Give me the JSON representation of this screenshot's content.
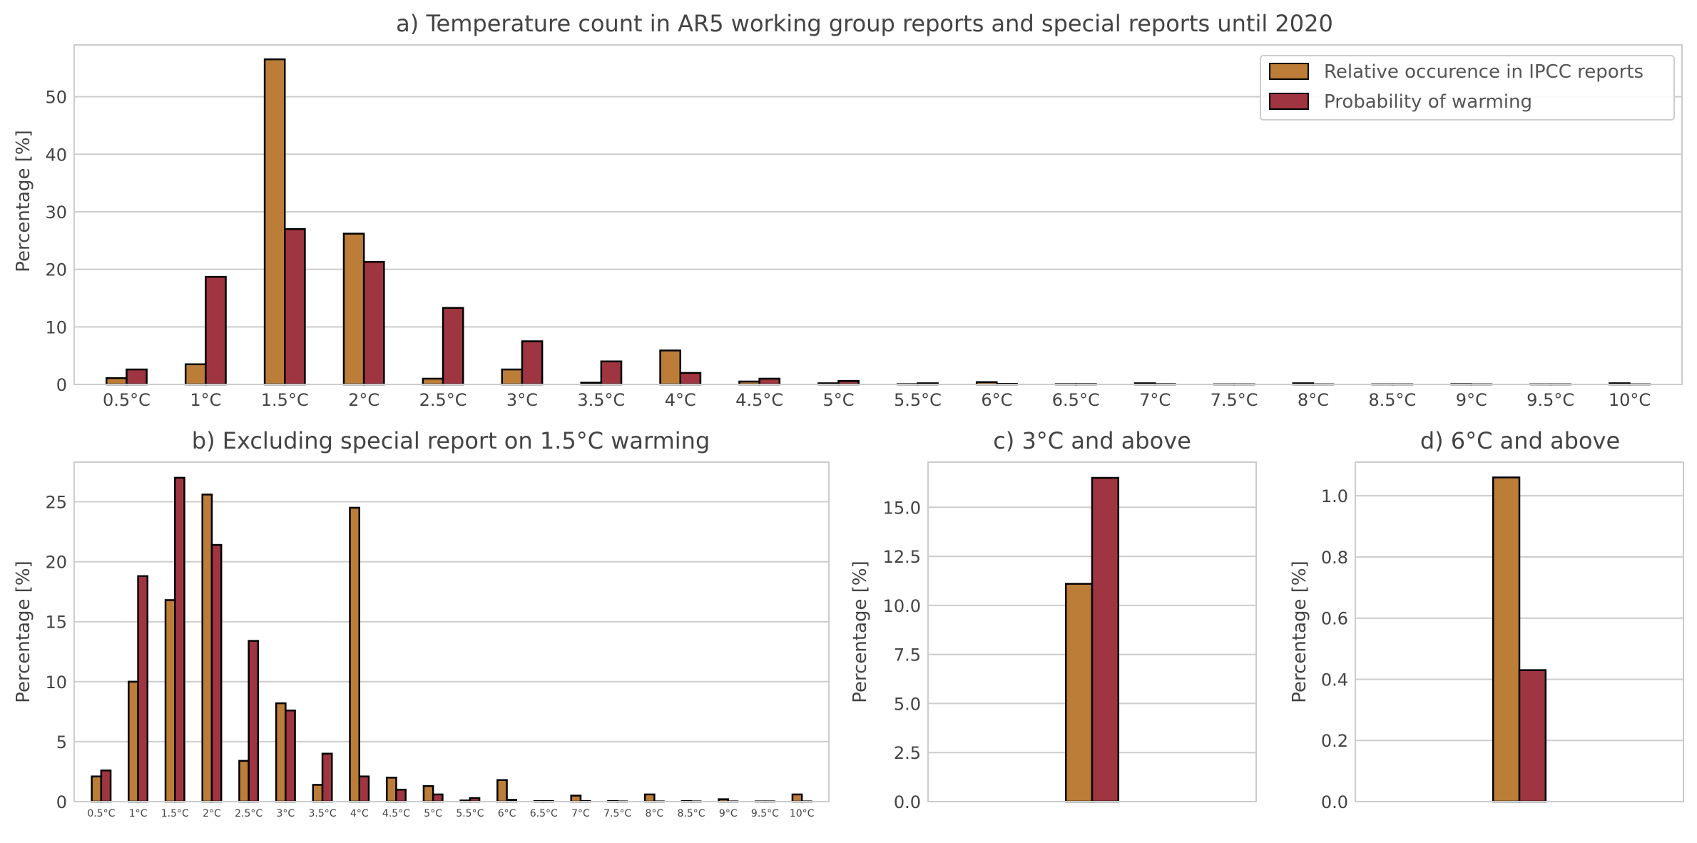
{
  "colors": {
    "ipcc": "#bb7d38",
    "warming": "#9e3540",
    "grid": "#cccccc",
    "frame": "#cccccc",
    "text": "#444444",
    "edge": "#000000"
  },
  "legend": {
    "series_1": "Relative occurence in IPCC reports",
    "series_2": "Probability of warming",
    "placement": "top-right"
  },
  "chart_data": [
    {
      "type": "bar",
      "title": "a) Temperature count in AR5 working group reports and special reports until 2020",
      "xlabel": "",
      "ylabel": "Percentage [%]",
      "ylim": [
        0,
        59
      ],
      "yticks": [
        0,
        10,
        20,
        30,
        40,
        50
      ],
      "ytick_labels": [
        "0",
        "10",
        "20",
        "30",
        "40",
        "50"
      ],
      "grid": true,
      "categories": [
        "0.5°C",
        "1°C",
        "1.5°C",
        "2°C",
        "2.5°C",
        "3°C",
        "3.5°C",
        "4°C",
        "4.5°C",
        "5°C",
        "5.5°C",
        "6°C",
        "6.5°C",
        "7°C",
        "7.5°C",
        "8°C",
        "8.5°C",
        "9°C",
        "9.5°C",
        "10°C"
      ],
      "series": [
        {
          "name": "Relative occurence in IPCC reports",
          "values": [
            1.1,
            3.5,
            56.5,
            26.2,
            1.0,
            2.6,
            0.3,
            5.9,
            0.5,
            0.2,
            0.05,
            0.4,
            0.05,
            0.2,
            0.02,
            0.2,
            0.02,
            0.05,
            0.02,
            0.2
          ]
        },
        {
          "name": "Probability of warming",
          "values": [
            2.6,
            18.7,
            27.0,
            21.3,
            13.3,
            7.5,
            4.0,
            2.0,
            1.0,
            0.6,
            0.2,
            0.1,
            0.05,
            0.05,
            0.02,
            0.02,
            0.02,
            0.02,
            0.02,
            0.02
          ]
        }
      ]
    },
    {
      "type": "bar",
      "title": "b) Excluding special report on 1.5°C warming",
      "xlabel": "",
      "ylabel": "Percentage [%]",
      "ylim": [
        0,
        28.3
      ],
      "yticks": [
        0,
        5,
        10,
        15,
        20,
        25
      ],
      "ytick_labels": [
        "0",
        "5",
        "10",
        "15",
        "20",
        "25"
      ],
      "grid": true,
      "categories": [
        "0.5°C",
        "1°C",
        "1.5°C",
        "2°C",
        "2.5°C",
        "3°C",
        "3.5°C",
        "4°C",
        "4.5°C",
        "5°C",
        "5.5°C",
        "6°C",
        "6.5°C",
        "7°C",
        "7.5°C",
        "8°C",
        "8.5°C",
        "9°C",
        "9.5°C",
        "10°C"
      ],
      "series": [
        {
          "name": "Relative occurence in IPCC reports",
          "values": [
            2.1,
            10.0,
            16.8,
            25.6,
            3.4,
            8.2,
            1.4,
            24.5,
            2.0,
            1.3,
            0.1,
            1.8,
            0.05,
            0.5,
            0.05,
            0.6,
            0.05,
            0.2,
            0.02,
            0.6
          ]
        },
        {
          "name": "Probability of warming",
          "values": [
            2.6,
            18.8,
            27.0,
            21.4,
            13.4,
            7.6,
            4.0,
            2.1,
            1.0,
            0.6,
            0.3,
            0.15,
            0.05,
            0.05,
            0.02,
            0.02,
            0.02,
            0.02,
            0.02,
            0.02
          ]
        }
      ]
    },
    {
      "type": "bar",
      "title": "c) 3°C and above",
      "xlabel": "",
      "ylabel": "Percentage [%]",
      "ylim": [
        0,
        17.3
      ],
      "yticks": [
        0,
        2.5,
        5,
        7.5,
        10,
        12.5,
        15
      ],
      "ytick_labels": [
        "0.0",
        "2.5",
        "5.0",
        "7.5",
        "10.0",
        "12.5",
        "15.0"
      ],
      "grid": true,
      "categories": [
        ""
      ],
      "series": [
        {
          "name": "Relative occurence in IPCC reports",
          "values": [
            11.1
          ]
        },
        {
          "name": "Probability of warming",
          "values": [
            16.5
          ]
        }
      ]
    },
    {
      "type": "bar",
      "title": "d) 6°C and above",
      "xlabel": "",
      "ylabel": "Percentage [%]",
      "ylim": [
        0,
        1.11
      ],
      "yticks": [
        0,
        0.2,
        0.4,
        0.6,
        0.8,
        1.0
      ],
      "ytick_labels": [
        "0.0",
        "0.2",
        "0.4",
        "0.6",
        "0.8",
        "1.0"
      ],
      "grid": true,
      "categories": [
        ""
      ],
      "series": [
        {
          "name": "Relative occurence in IPCC reports",
          "values": [
            1.06
          ]
        },
        {
          "name": "Probability of warming",
          "values": [
            0.43
          ]
        }
      ]
    }
  ]
}
